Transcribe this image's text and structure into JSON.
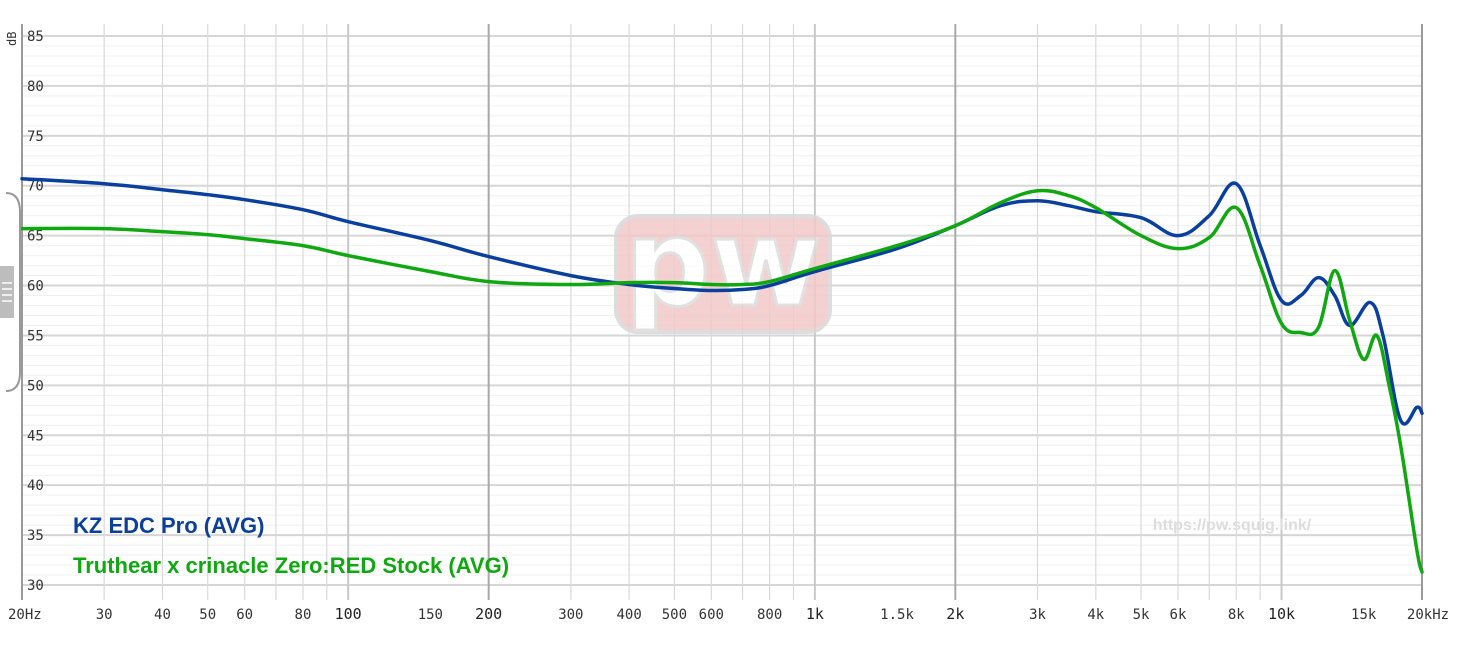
{
  "chart_data": {
    "type": "line",
    "xscale": "log",
    "xlim": [
      20,
      20000
    ],
    "ylim": [
      30,
      85
    ],
    "ylabel": "dB",
    "y_ticks": [
      "85",
      "80",
      "75",
      "70",
      "65",
      "60",
      "55",
      "50",
      "45",
      "40",
      "35",
      "30"
    ],
    "x_ticks": [
      {
        "value": 20,
        "label": "20Hz"
      },
      {
        "value": 30,
        "label": "30"
      },
      {
        "value": 40,
        "label": "40"
      },
      {
        "value": 50,
        "label": "50"
      },
      {
        "value": 60,
        "label": "60"
      },
      {
        "value": 80,
        "label": "80"
      },
      {
        "value": 100,
        "label": "100"
      },
      {
        "value": 150,
        "label": "150"
      },
      {
        "value": 200,
        "label": "200"
      },
      {
        "value": 300,
        "label": "300"
      },
      {
        "value": 400,
        "label": "400"
      },
      {
        "value": 500,
        "label": "500"
      },
      {
        "value": 600,
        "label": "600"
      },
      {
        "value": 800,
        "label": "800"
      },
      {
        "value": 1000,
        "label": "1k"
      },
      {
        "value": 1500,
        "label": "1.5k"
      },
      {
        "value": 2000,
        "label": "2k"
      },
      {
        "value": 3000,
        "label": "3k"
      },
      {
        "value": 4000,
        "label": "4k"
      },
      {
        "value": 5000,
        "label": "5k"
      },
      {
        "value": 6000,
        "label": "6k"
      },
      {
        "value": 8000,
        "label": "8k"
      },
      {
        "value": 10000,
        "label": "10k"
      },
      {
        "value": 15000,
        "label": "15k"
      },
      {
        "value": 20000,
        "label": "20kHz"
      }
    ],
    "grid": true,
    "legend_position": "bottom-left",
    "series": [
      {
        "name": "KZ EDC Pro (AVG)",
        "color": "#0b3f9e",
        "points": [
          [
            20,
            70.7
          ],
          [
            30,
            70.2
          ],
          [
            40,
            69.6
          ],
          [
            50,
            69.1
          ],
          [
            60,
            68.6
          ],
          [
            80,
            67.6
          ],
          [
            100,
            66.4
          ],
          [
            150,
            64.5
          ],
          [
            200,
            62.9
          ],
          [
            300,
            61.0
          ],
          [
            400,
            60.1
          ],
          [
            500,
            59.7
          ],
          [
            600,
            59.5
          ],
          [
            700,
            59.6
          ],
          [
            800,
            60.0
          ],
          [
            1000,
            61.4
          ],
          [
            1500,
            63.7
          ],
          [
            2000,
            66.0
          ],
          [
            2500,
            68.0
          ],
          [
            3000,
            68.5
          ],
          [
            3500,
            68.0
          ],
          [
            4000,
            67.4
          ],
          [
            5000,
            66.8
          ],
          [
            6000,
            65.0
          ],
          [
            7000,
            67.0
          ],
          [
            8000,
            70.2
          ],
          [
            9000,
            64.0
          ],
          [
            10000,
            58.5
          ],
          [
            11000,
            59.0
          ],
          [
            12000,
            60.8
          ],
          [
            13000,
            59.0
          ],
          [
            14000,
            56.0
          ],
          [
            15500,
            58.3
          ],
          [
            16500,
            55.0
          ],
          [
            18000,
            46.5
          ],
          [
            19500,
            47.8
          ],
          [
            20000,
            47.2
          ]
        ]
      },
      {
        "name": "Truthear x crinacle Zero:RED Stock (AVG)",
        "color": "#10a810",
        "points": [
          [
            20,
            65.7
          ],
          [
            30,
            65.7
          ],
          [
            40,
            65.4
          ],
          [
            50,
            65.1
          ],
          [
            60,
            64.7
          ],
          [
            80,
            64.0
          ],
          [
            100,
            63.0
          ],
          [
            150,
            61.4
          ],
          [
            200,
            60.4
          ],
          [
            300,
            60.1
          ],
          [
            400,
            60.3
          ],
          [
            500,
            60.3
          ],
          [
            600,
            60.1
          ],
          [
            700,
            60.1
          ],
          [
            800,
            60.4
          ],
          [
            1000,
            61.7
          ],
          [
            1500,
            64.0
          ],
          [
            2000,
            66.0
          ],
          [
            2500,
            68.3
          ],
          [
            3000,
            69.5
          ],
          [
            3500,
            69.0
          ],
          [
            4000,
            67.8
          ],
          [
            5000,
            65.0
          ],
          [
            6000,
            63.7
          ],
          [
            7000,
            64.8
          ],
          [
            8000,
            67.8
          ],
          [
            9000,
            62.0
          ],
          [
            10000,
            56.2
          ],
          [
            11000,
            55.3
          ],
          [
            12000,
            55.8
          ],
          [
            13000,
            61.5
          ],
          [
            14000,
            56.5
          ],
          [
            15000,
            52.6
          ],
          [
            16000,
            55.0
          ],
          [
            17000,
            50.0
          ],
          [
            18000,
            44.0
          ],
          [
            19500,
            33.5
          ],
          [
            20000,
            31.3
          ]
        ]
      }
    ],
    "annotations": [
      "https://pw.squig.link/"
    ]
  },
  "watermark": {
    "logo_text": "pw",
    "url": "https://pw.squig.link/"
  }
}
